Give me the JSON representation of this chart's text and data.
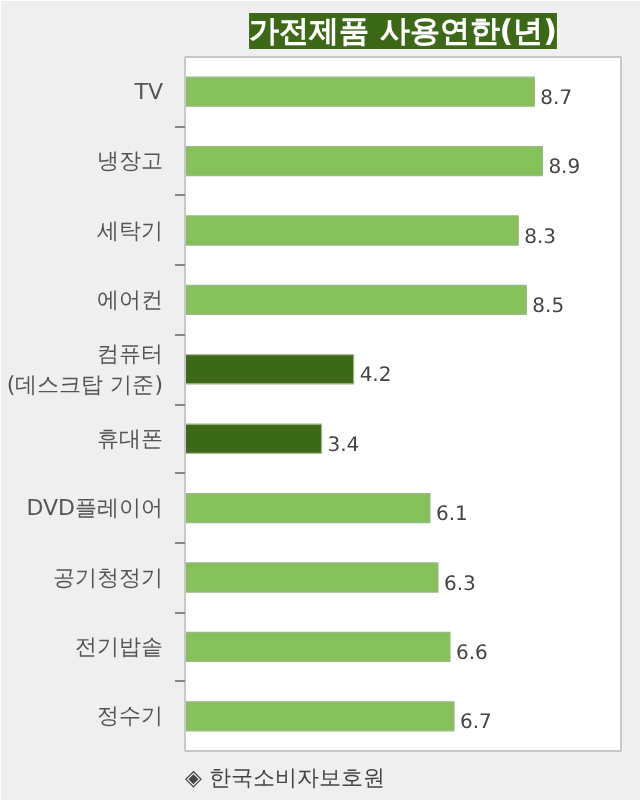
{
  "chart_data": {
    "type": "bar",
    "orientation": "horizontal",
    "title": "가전제품 사용연한(년)",
    "categories": [
      "TV",
      "냉장고",
      "세탁기",
      "에어컨",
      "컴퓨터\n(데스크탑 기준)",
      "휴대폰",
      "DVD플레이어",
      "공기청정기",
      "전기밥솥",
      "정수기"
    ],
    "values": [
      8.7,
      8.9,
      8.3,
      8.5,
      4.2,
      3.4,
      6.1,
      6.3,
      6.6,
      6.7
    ],
    "colors": [
      "#86c05a",
      "#86c05a",
      "#86c05a",
      "#86c05a",
      "#3c6818",
      "#3c6818",
      "#86c05a",
      "#86c05a",
      "#86c05a",
      "#86c05a"
    ],
    "data_labels": true,
    "grid": false,
    "annotations": [
      "◈ 한국소비자보호원"
    ]
  }
}
